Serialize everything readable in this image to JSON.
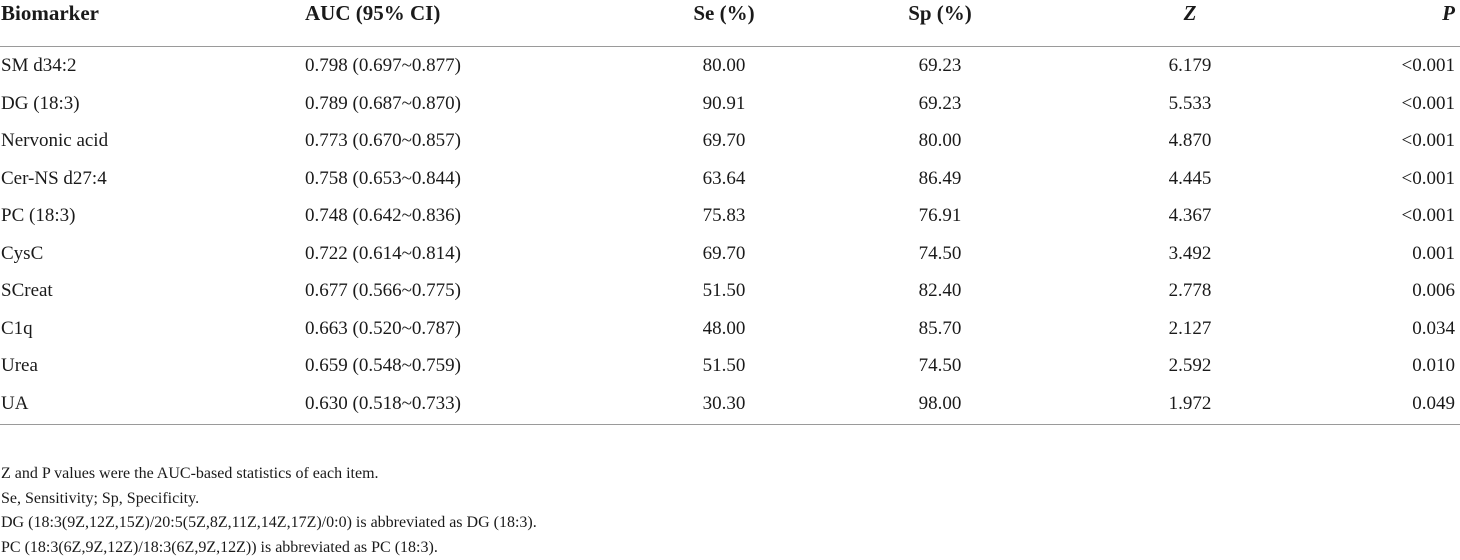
{
  "table": {
    "headers": {
      "biomarker": "Biomarker",
      "auc": "AUC (95% CI)",
      "se": "Se (%)",
      "sp": "Sp (%)",
      "z": "Z",
      "p": "P"
    },
    "rows": [
      {
        "biomarker": "SM d34:2",
        "auc": "0.798 (0.697~0.877)",
        "se": "80.00",
        "sp": "69.23",
        "z": "6.179",
        "p": "<0.001"
      },
      {
        "biomarker": "DG (18:3)",
        "auc": "0.789 (0.687~0.870)",
        "se": "90.91",
        "sp": "69.23",
        "z": "5.533",
        "p": "<0.001"
      },
      {
        "biomarker": "Nervonic acid",
        "auc": "0.773 (0.670~0.857)",
        "se": "69.70",
        "sp": "80.00",
        "z": "4.870",
        "p": "<0.001"
      },
      {
        "biomarker": "Cer-NS d27:4",
        "auc": "0.758 (0.653~0.844)",
        "se": "63.64",
        "sp": "86.49",
        "z": "4.445",
        "p": "<0.001"
      },
      {
        "biomarker": "PC (18:3)",
        "auc": "0.748 (0.642~0.836)",
        "se": "75.83",
        "sp": "76.91",
        "z": "4.367",
        "p": "<0.001"
      },
      {
        "biomarker": "CysC",
        "auc": "0.722 (0.614~0.814)",
        "se": "69.70",
        "sp": "74.50",
        "z": "3.492",
        "p": "0.001"
      },
      {
        "biomarker": "SCreat",
        "auc": "0.677 (0.566~0.775)",
        "se": "51.50",
        "sp": "82.40",
        "z": "2.778",
        "p": "0.006"
      },
      {
        "biomarker": "C1q",
        "auc": "0.663 (0.520~0.787)",
        "se": "48.00",
        "sp": "85.70",
        "z": "2.127",
        "p": "0.034"
      },
      {
        "biomarker": "Urea",
        "auc": "0.659 (0.548~0.759)",
        "se": "51.50",
        "sp": "74.50",
        "z": "2.592",
        "p": "0.010"
      },
      {
        "biomarker": "UA",
        "auc": "0.630 (0.518~0.733)",
        "se": "30.30",
        "sp": "98.00",
        "z": "1.972",
        "p": "0.049"
      }
    ]
  },
  "notes": [
    "Z and P values were the AUC-based statistics of each item.",
    "Se, Sensitivity; Sp, Specificity.",
    "DG (18:3(9Z,12Z,15Z)/20:5(5Z,8Z,11Z,14Z,17Z)/0:0) is abbreviated as DG (18:3).",
    "PC (18:3(6Z,9Z,12Z)/18:3(6Z,9Z,12Z)) is abbreviated as PC (18:3)."
  ]
}
